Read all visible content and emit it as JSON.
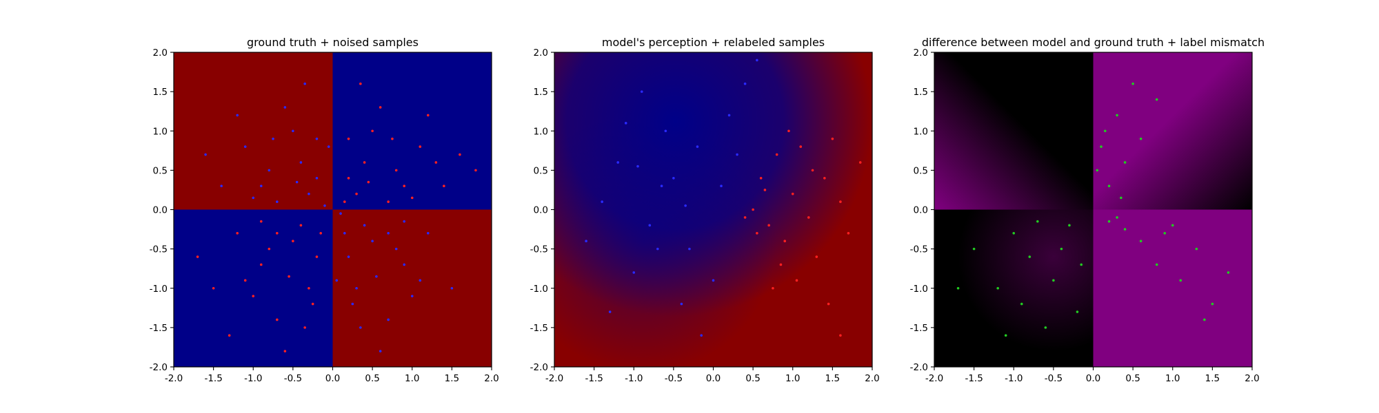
{
  "chart_data": [
    {
      "type": "scatter",
      "title": "ground truth + noised samples",
      "xlabel": "",
      "ylabel": "",
      "xlim": [
        -2.0,
        2.0
      ],
      "ylim": [
        -2.0,
        2.0
      ],
      "xticks": [
        "-2.0",
        "-1.5",
        "-1.0",
        "-0.5",
        "0.0",
        "0.5",
        "1.0",
        "1.5",
        "2.0"
      ],
      "yticks": [
        "-2.0",
        "-1.5",
        "-1.0",
        "-0.5",
        "0.0",
        "0.5",
        "1.0",
        "1.5",
        "2.0"
      ],
      "grid": false,
      "background": {
        "kind": "xor-quadrants",
        "quadrants": {
          "top_left": "#880000",
          "top_right": "#000088",
          "bottom_left": "#000088",
          "bottom_right": "#880000"
        }
      },
      "series": [
        {
          "color": "#ff2020",
          "points": [
            [
              0.6,
              1.3
            ],
            [
              0.2,
              0.9
            ],
            [
              0.4,
              0.6
            ],
            [
              0.8,
              0.5
            ],
            [
              1.1,
              0.8
            ],
            [
              1.4,
              0.3
            ],
            [
              0.3,
              0.2
            ],
            [
              0.7,
              0.1
            ],
            [
              1.2,
              1.2
            ],
            [
              0.9,
              0.3
            ],
            [
              0.5,
              1.0
            ],
            [
              1.6,
              0.7
            ],
            [
              0.2,
              0.4
            ],
            [
              1.0,
              0.15
            ],
            [
              0.45,
              0.35
            ],
            [
              1.8,
              0.5
            ],
            [
              0.35,
              1.6
            ],
            [
              0.75,
              0.9
            ],
            [
              1.3,
              0.6
            ],
            [
              0.15,
              0.1
            ],
            [
              -0.5,
              -0.4
            ],
            [
              -0.9,
              -0.7
            ],
            [
              -0.3,
              -1.0
            ],
            [
              -1.2,
              -0.3
            ],
            [
              -0.7,
              -1.4
            ],
            [
              -0.4,
              -0.2
            ],
            [
              -1.0,
              -1.1
            ],
            [
              -0.2,
              -0.6
            ],
            [
              -0.8,
              -0.5
            ],
            [
              -1.5,
              -1.0
            ],
            [
              -0.6,
              -1.8
            ],
            [
              -1.1,
              -0.9
            ],
            [
              -0.35,
              -1.5
            ],
            [
              -0.9,
              -0.15
            ],
            [
              -1.7,
              -0.6
            ],
            [
              -0.15,
              -0.3
            ],
            [
              -0.55,
              -0.85
            ],
            [
              -1.3,
              -1.6
            ],
            [
              -0.25,
              -1.2
            ],
            [
              -0.7,
              -0.3
            ]
          ]
        },
        {
          "color": "#2a2aff",
          "points": [
            [
              -0.6,
              1.3
            ],
            [
              -0.2,
              0.9
            ],
            [
              -0.4,
              0.6
            ],
            [
              -0.8,
              0.5
            ],
            [
              -1.1,
              0.8
            ],
            [
              -1.4,
              0.3
            ],
            [
              -0.3,
              0.2
            ],
            [
              -0.7,
              0.1
            ],
            [
              -1.2,
              1.2
            ],
            [
              -0.9,
              0.3
            ],
            [
              -0.5,
              1.0
            ],
            [
              -1.6,
              0.7
            ],
            [
              -0.2,
              0.4
            ],
            [
              -1.0,
              0.15
            ],
            [
              -0.45,
              0.35
            ],
            [
              -0.35,
              1.6
            ],
            [
              -0.75,
              0.9
            ],
            [
              0.5,
              -0.4
            ],
            [
              0.9,
              -0.7
            ],
            [
              0.3,
              -1.0
            ],
            [
              1.2,
              -0.3
            ],
            [
              0.7,
              -1.4
            ],
            [
              0.4,
              -0.2
            ],
            [
              1.0,
              -1.1
            ],
            [
              0.2,
              -0.6
            ],
            [
              0.8,
              -0.5
            ],
            [
              1.5,
              -1.0
            ],
            [
              0.6,
              -1.8
            ],
            [
              1.1,
              -0.9
            ],
            [
              0.35,
              -1.5
            ],
            [
              0.9,
              -0.15
            ],
            [
              0.15,
              -0.3
            ],
            [
              0.55,
              -0.85
            ],
            [
              0.25,
              -1.2
            ],
            [
              0.7,
              -0.3
            ],
            [
              0.1,
              -0.05
            ],
            [
              -0.1,
              0.05
            ],
            [
              0.05,
              -0.9
            ],
            [
              -0.05,
              0.8
            ]
          ]
        }
      ]
    },
    {
      "type": "scatter",
      "title": "model's perception + relabeled samples",
      "xlabel": "",
      "ylabel": "",
      "xlim": [
        -2.0,
        2.0
      ],
      "ylim": [
        -2.0,
        2.0
      ],
      "xticks": [
        "-2.0",
        "-1.5",
        "-1.0",
        "-0.5",
        "0.0",
        "0.5",
        "1.0",
        "1.5",
        "2.0"
      ],
      "yticks": [
        "-2.0",
        "-1.5",
        "-1.0",
        "-0.5",
        "0.0",
        "0.5",
        "1.0",
        "1.5",
        "2.0"
      ],
      "grid": false,
      "background": {
        "kind": "blended-quadrants",
        "quadrants": {
          "top_left": "#880000",
          "top_right": "#000088",
          "bottom_left": "#000088",
          "bottom_right": "#880000"
        }
      },
      "series": [
        {
          "color": "#ff2020",
          "points": [
            [
              0.8,
              0.7
            ],
            [
              0.6,
              0.4
            ],
            [
              1.0,
              0.2
            ],
            [
              0.5,
              0.0
            ],
            [
              1.2,
              -0.1
            ],
            [
              0.9,
              -0.4
            ],
            [
              0.7,
              -0.2
            ],
            [
              1.4,
              0.4
            ],
            [
              1.1,
              0.8
            ],
            [
              0.85,
              -0.7
            ],
            [
              0.55,
              -0.3
            ],
            [
              1.6,
              0.1
            ],
            [
              1.3,
              -0.6
            ],
            [
              0.95,
              1.0
            ],
            [
              1.5,
              0.9
            ],
            [
              0.65,
              0.25
            ],
            [
              1.05,
              -0.9
            ],
            [
              1.7,
              -0.3
            ],
            [
              0.4,
              -0.1
            ],
            [
              1.25,
              0.5
            ],
            [
              1.45,
              -1.2
            ],
            [
              1.6,
              -1.6
            ],
            [
              0.75,
              -1.0
            ],
            [
              1.85,
              0.6
            ]
          ]
        },
        {
          "color": "#2a2aff",
          "points": [
            [
              -0.5,
              0.4
            ],
            [
              -0.8,
              -0.2
            ],
            [
              -1.2,
              0.6
            ],
            [
              -0.3,
              -0.5
            ],
            [
              0.2,
              1.2
            ],
            [
              -0.6,
              1.0
            ],
            [
              -1.0,
              -0.8
            ],
            [
              -0.4,
              -1.2
            ],
            [
              0.1,
              0.3
            ],
            [
              -1.4,
              0.1
            ],
            [
              -0.9,
              1.5
            ],
            [
              0.4,
              1.6
            ],
            [
              -0.2,
              0.8
            ],
            [
              -0.7,
              -0.5
            ],
            [
              -1.6,
              -0.4
            ],
            [
              0.0,
              -0.9
            ],
            [
              -1.1,
              1.1
            ],
            [
              -0.35,
              0.05
            ],
            [
              0.3,
              0.7
            ],
            [
              -0.15,
              -1.6
            ],
            [
              -1.3,
              -1.3
            ],
            [
              -0.65,
              0.3
            ],
            [
              0.55,
              1.9
            ],
            [
              -0.95,
              0.55
            ]
          ]
        }
      ]
    },
    {
      "type": "scatter",
      "title": "difference between model and ground truth + label mismatch",
      "xlabel": "",
      "ylabel": "",
      "xlim": [
        -2.0,
        2.0
      ],
      "ylim": [
        -2.0,
        2.0
      ],
      "xticks": [
        "-2.0",
        "-1.5",
        "-1.0",
        "-0.5",
        "0.0",
        "0.5",
        "1.0",
        "1.5",
        "2.0"
      ],
      "yticks": [
        "-2.0",
        "-1.5",
        "-1.0",
        "-0.5",
        "0.0",
        "0.5",
        "1.0",
        "1.5",
        "2.0"
      ],
      "grid": false,
      "background": {
        "kind": "difference-map",
        "colors": {
          "mismatch": "#800080",
          "match": "#000000"
        }
      },
      "series": [
        {
          "color": "#22cc22",
          "points": [
            [
              0.3,
              1.2
            ],
            [
              0.1,
              0.8
            ],
            [
              0.5,
              1.6
            ],
            [
              0.2,
              0.3
            ],
            [
              0.8,
              1.4
            ],
            [
              0.4,
              0.6
            ],
            [
              0.15,
              1.0
            ],
            [
              0.6,
              0.9
            ],
            [
              0.05,
              0.5
            ],
            [
              0.35,
              0.15
            ],
            [
              -0.3,
              -0.2
            ],
            [
              -0.8,
              -0.6
            ],
            [
              -1.2,
              -1.0
            ],
            [
              -0.5,
              -0.9
            ],
            [
              -0.2,
              -1.3
            ],
            [
              -1.0,
              -0.3
            ],
            [
              -0.6,
              -1.5
            ],
            [
              -1.5,
              -0.5
            ],
            [
              -0.4,
              -0.5
            ],
            [
              -0.9,
              -1.2
            ],
            [
              -1.7,
              -1.0
            ],
            [
              -0.15,
              -0.7
            ],
            [
              -1.1,
              -1.6
            ],
            [
              -0.7,
              -0.15
            ],
            [
              0.3,
              -0.1
            ],
            [
              0.6,
              -0.4
            ],
            [
              1.0,
              -0.2
            ],
            [
              0.8,
              -0.7
            ],
            [
              1.3,
              -0.5
            ],
            [
              0.4,
              -0.25
            ],
            [
              1.5,
              -1.2
            ],
            [
              1.1,
              -0.9
            ],
            [
              0.2,
              -0.15
            ],
            [
              1.7,
              -0.8
            ],
            [
              0.9,
              -0.3
            ],
            [
              1.4,
              -1.4
            ]
          ]
        }
      ]
    }
  ]
}
